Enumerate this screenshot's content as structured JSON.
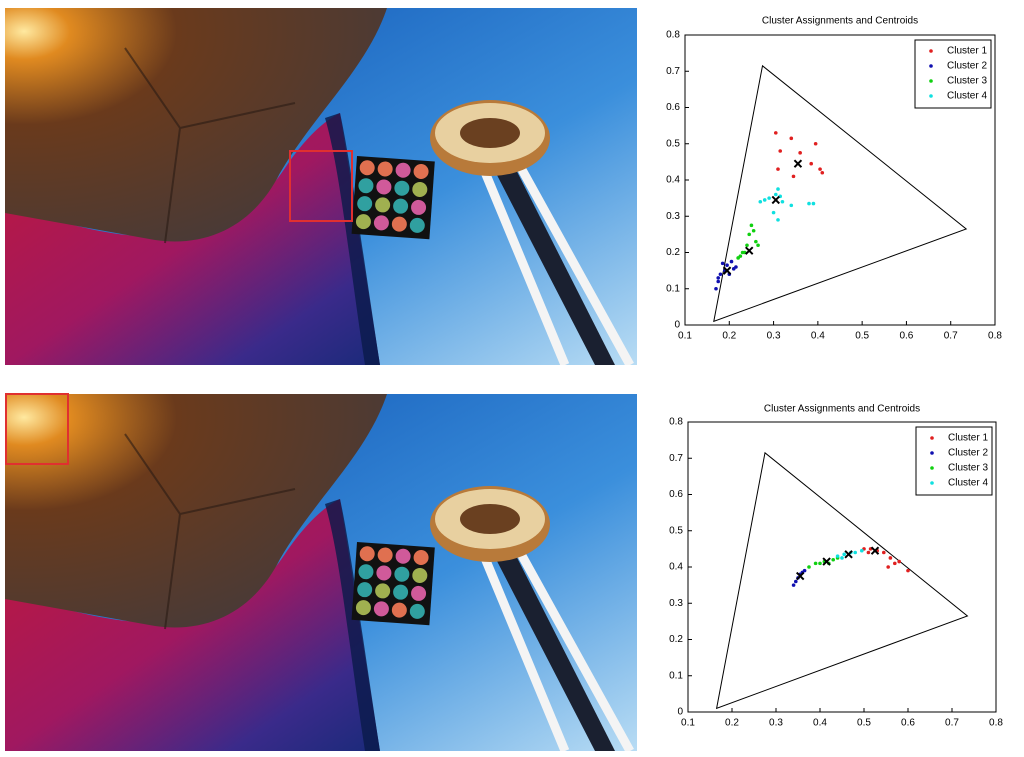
{
  "chart_data": [
    {
      "type": "scatter",
      "title": "Cluster Assignments and Centroids",
      "xlim": [
        0.1,
        0.8
      ],
      "ylim": [
        0,
        0.8
      ],
      "xticks": [
        0.1,
        0.2,
        0.3,
        0.4,
        0.5,
        0.6,
        0.7,
        0.8
      ],
      "yticks": [
        0,
        0.1,
        0.2,
        0.3,
        0.4,
        0.5,
        0.6,
        0.7,
        0.8
      ],
      "legend": "upper right",
      "triangle": [
        [
          0.165,
          0.01
        ],
        [
          0.275,
          0.715
        ],
        [
          0.735,
          0.265
        ]
      ],
      "series": [
        {
          "name": "Cluster 1",
          "color": "#e02020",
          "x": [
            0.305,
            0.34,
            0.395,
            0.315,
            0.385,
            0.405,
            0.41,
            0.345,
            0.31,
            0.36
          ],
          "values": [
            0.53,
            0.515,
            0.5,
            0.48,
            0.445,
            0.43,
            0.42,
            0.41,
            0.43,
            0.475
          ],
          "centroid": {
            "x": 0.355,
            "y": 0.445
          }
        },
        {
          "name": "Cluster 2",
          "color": "#1010b0",
          "x": [
            0.17,
            0.175,
            0.18,
            0.19,
            0.195,
            0.2,
            0.21,
            0.215,
            0.185,
            0.205,
            0.175
          ],
          "values": [
            0.1,
            0.12,
            0.14,
            0.15,
            0.165,
            0.14,
            0.155,
            0.16,
            0.17,
            0.175,
            0.13
          ],
          "centroid": {
            "x": 0.195,
            "y": 0.15
          }
        },
        {
          "name": "Cluster 3",
          "color": "#10d010",
          "x": [
            0.225,
            0.235,
            0.24,
            0.245,
            0.25,
            0.255,
            0.26,
            0.265,
            0.23,
            0.22
          ],
          "values": [
            0.19,
            0.2,
            0.22,
            0.25,
            0.275,
            0.26,
            0.23,
            0.22,
            0.2,
            0.185
          ],
          "centroid": {
            "x": 0.245,
            "y": 0.205
          }
        },
        {
          "name": "Cluster 4",
          "color": "#10e0e0",
          "x": [
            0.27,
            0.28,
            0.29,
            0.305,
            0.31,
            0.315,
            0.32,
            0.34,
            0.38,
            0.39,
            0.3,
            0.31
          ],
          "values": [
            0.34,
            0.345,
            0.35,
            0.36,
            0.375,
            0.355,
            0.34,
            0.33,
            0.335,
            0.335,
            0.31,
            0.29
          ],
          "centroid": {
            "x": 0.305,
            "y": 0.345
          }
        }
      ]
    },
    {
      "type": "scatter",
      "title": "Cluster Assignments and Centroids",
      "xlim": [
        0.1,
        0.8
      ],
      "ylim": [
        0,
        0.8
      ],
      "xticks": [
        0.1,
        0.2,
        0.3,
        0.4,
        0.5,
        0.6,
        0.7,
        0.8
      ],
      "yticks": [
        0,
        0.1,
        0.2,
        0.3,
        0.4,
        0.5,
        0.6,
        0.7,
        0.8
      ],
      "legend": "upper right",
      "triangle": [
        [
          0.165,
          0.01
        ],
        [
          0.275,
          0.715
        ],
        [
          0.735,
          0.265
        ]
      ],
      "series": [
        {
          "name": "Cluster 1",
          "color": "#e02020",
          "x": [
            0.5,
            0.51,
            0.53,
            0.545,
            0.56,
            0.57,
            0.58,
            0.6,
            0.555,
            0.515
          ],
          "values": [
            0.45,
            0.44,
            0.445,
            0.44,
            0.425,
            0.41,
            0.415,
            0.39,
            0.4,
            0.45
          ],
          "centroid": {
            "x": 0.525,
            "y": 0.445
          }
        },
        {
          "name": "Cluster 2",
          "color": "#1010b0",
          "x": [
            0.345,
            0.35,
            0.355,
            0.36,
            0.365,
            0.34
          ],
          "values": [
            0.36,
            0.37,
            0.38,
            0.385,
            0.39,
            0.35
          ],
          "centroid": {
            "x": 0.355,
            "y": 0.375
          }
        },
        {
          "name": "Cluster 3",
          "color": "#10d010",
          "x": [
            0.375,
            0.39,
            0.4,
            0.41,
            0.42,
            0.43,
            0.44
          ],
          "values": [
            0.4,
            0.41,
            0.41,
            0.415,
            0.41,
            0.42,
            0.425
          ],
          "centroid": {
            "x": 0.415,
            "y": 0.415
          }
        },
        {
          "name": "Cluster 4",
          "color": "#10e0e0",
          "x": [
            0.44,
            0.455,
            0.47,
            0.48,
            0.495,
            0.45
          ],
          "values": [
            0.43,
            0.435,
            0.44,
            0.44,
            0.445,
            0.425
          ],
          "centroid": {
            "x": 0.465,
            "y": 0.435
          }
        }
      ]
    }
  ]
}
